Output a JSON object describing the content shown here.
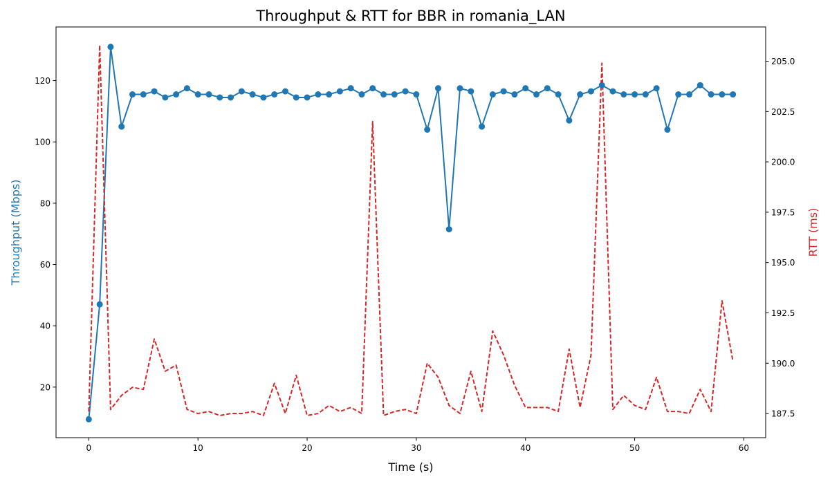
{
  "chart_data": {
    "type": "line",
    "title": "Throughput & RTT for BBR in romania_LAN",
    "xlabel": "Time (s)",
    "ylabel_left": "Throughput (Mbps)",
    "ylabel_right": "RTT (ms)",
    "xlim": [
      -3,
      62
    ],
    "ylim_left": [
      3.5,
      137.5
    ],
    "ylim_right": [
      186.3,
      206.7
    ],
    "x_ticks": [
      0,
      10,
      20,
      30,
      40,
      50,
      60
    ],
    "x_tick_labels": [
      "0",
      "10",
      "20",
      "30",
      "40",
      "50",
      "60"
    ],
    "y_left_ticks": [
      20,
      40,
      60,
      80,
      100,
      120
    ],
    "y_left_tick_labels": [
      "20",
      "40",
      "60",
      "80",
      "100",
      "120"
    ],
    "y_right_ticks": [
      187.5,
      190.0,
      192.5,
      195.0,
      197.5,
      200.0,
      202.5,
      205.0
    ],
    "y_right_tick_labels": [
      "187.5",
      "190.0",
      "192.5",
      "195.0",
      "197.5",
      "200.0",
      "202.5",
      "205.0"
    ],
    "grid": false,
    "x": [
      0,
      1,
      2,
      3,
      4,
      5,
      6,
      7,
      8,
      9,
      10,
      11,
      12,
      13,
      14,
      15,
      16,
      17,
      18,
      19,
      20,
      21,
      22,
      23,
      24,
      25,
      26,
      27,
      28,
      29,
      30,
      31,
      32,
      33,
      34,
      35,
      36,
      37,
      38,
      39,
      40,
      41,
      42,
      43,
      44,
      45,
      46,
      47,
      48,
      49,
      50,
      51,
      52,
      53,
      54,
      55,
      56,
      57,
      58,
      59
    ],
    "series": [
      {
        "axis": "left",
        "color": "#1f77b4",
        "style": "solid-marker",
        "values": [
          9.5,
          47,
          131,
          105,
          115.5,
          115.5,
          116.5,
          114.5,
          115.5,
          117.5,
          115.5,
          115.5,
          114.5,
          114.5,
          116.5,
          115.5,
          114.5,
          115.5,
          116.5,
          114.5,
          114.5,
          115.5,
          115.5,
          116.5,
          117.5,
          115.5,
          117.5,
          115.5,
          115.5,
          116.5,
          115.5,
          104,
          117.5,
          71.5,
          117.5,
          116.5,
          105,
          115.5,
          116.5,
          115.5,
          117.5,
          115.5,
          117.5,
          115.5,
          107,
          115.5,
          116.5,
          118.5,
          116.5,
          115.5,
          115.5,
          115.5,
          117.5,
          104,
          115.5,
          115.5,
          118.5,
          115.5,
          115.5,
          115.5
        ]
      },
      {
        "axis": "right",
        "color": "#d62728",
        "style": "dashed",
        "values": [
          187.6,
          205.8,
          187.7,
          188.4,
          188.8,
          188.7,
          191.2,
          189.6,
          189.9,
          187.7,
          187.5,
          187.6,
          187.4,
          187.5,
          187.5,
          187.6,
          187.4,
          189.0,
          187.5,
          189.4,
          187.4,
          187.5,
          187.9,
          187.6,
          187.8,
          187.5,
          202.0,
          187.4,
          187.6,
          187.7,
          187.5,
          190.0,
          189.3,
          187.9,
          187.5,
          189.6,
          187.6,
          191.6,
          190.4,
          188.9,
          187.8,
          187.8,
          187.8,
          187.6,
          190.7,
          187.8,
          190.4,
          204.9,
          187.7,
          188.4,
          187.9,
          187.7,
          189.3,
          187.6,
          187.6,
          187.5,
          188.7,
          187.6,
          193.1,
          190.1
        ]
      }
    ]
  }
}
